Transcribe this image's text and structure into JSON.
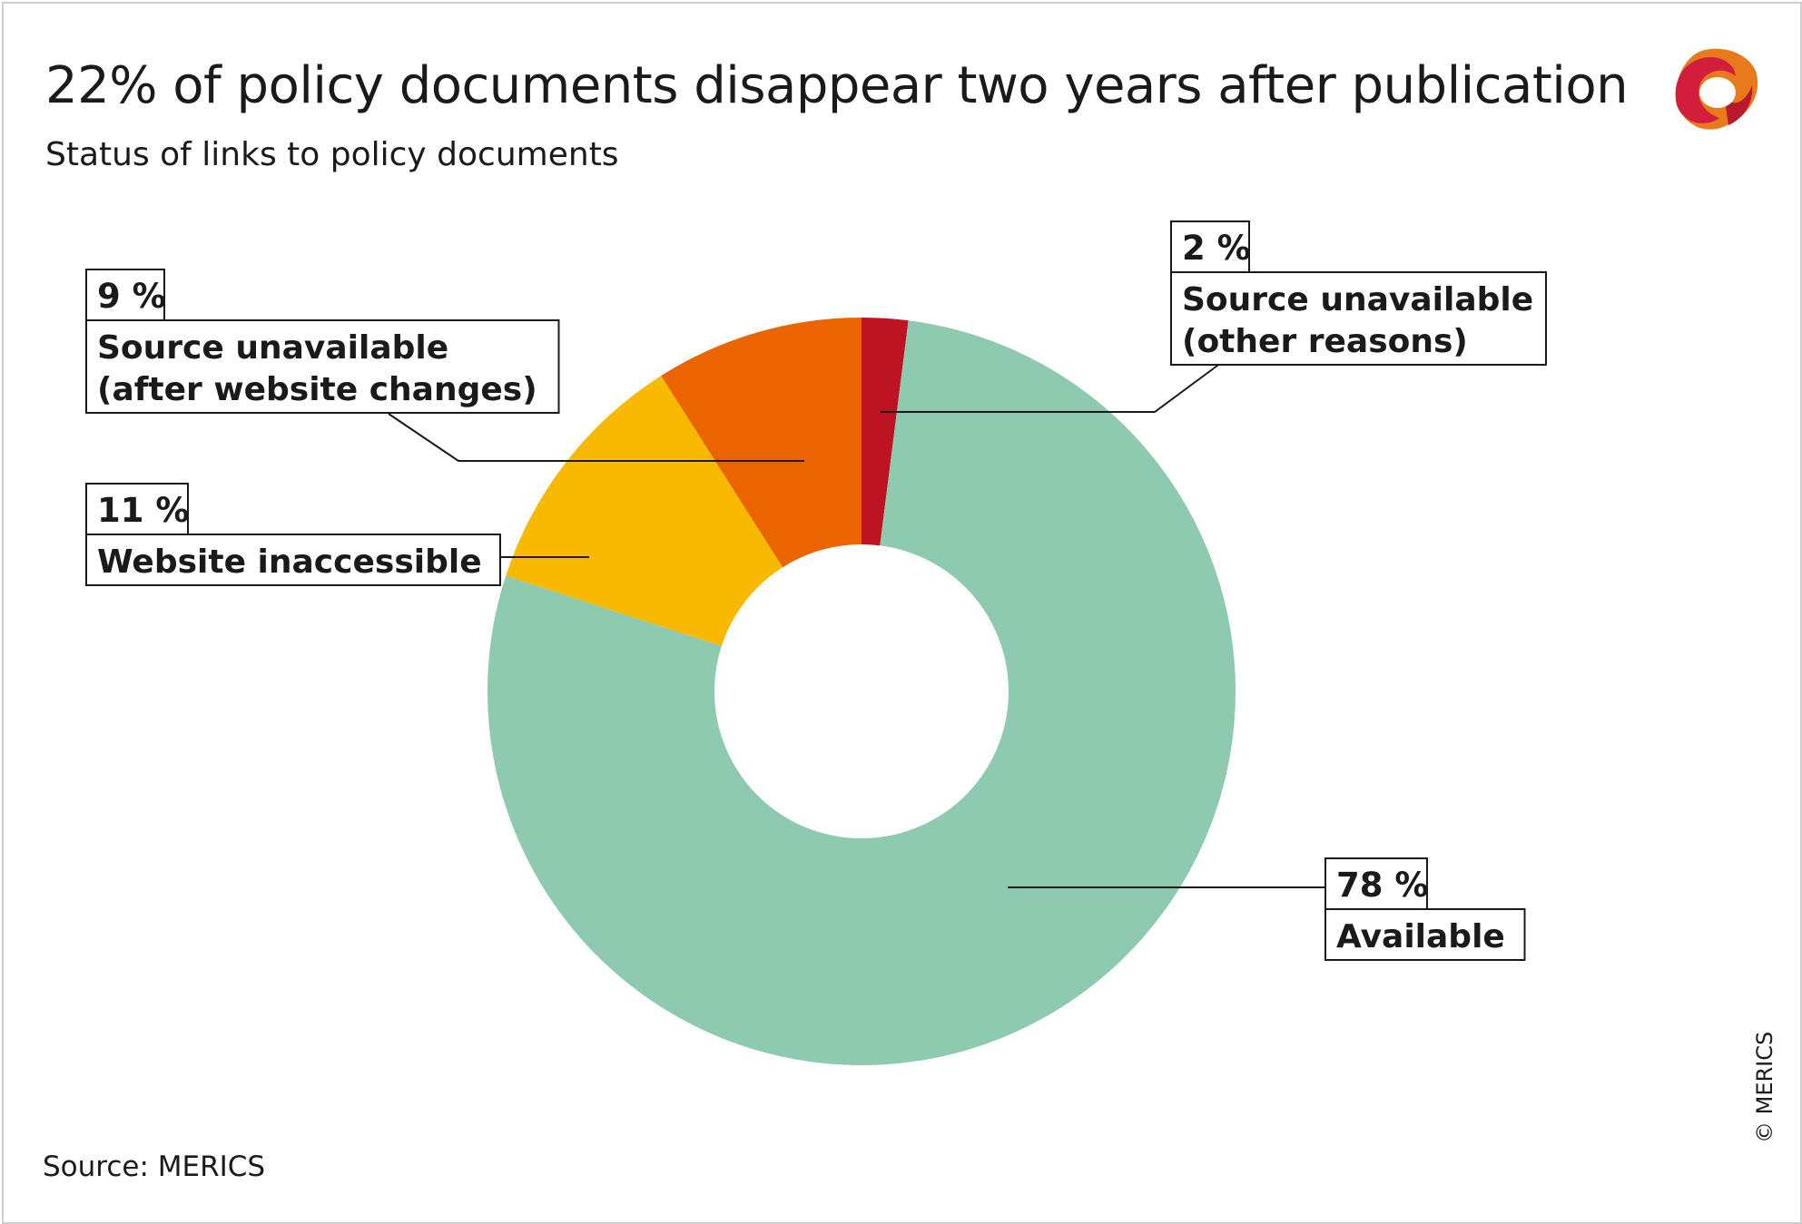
{
  "title": "22% of policy documents disappear two years after publication",
  "subtitle": "Status of links to policy documents",
  "source": "Source: MERICS",
  "copyright": "© MERICS",
  "chart_data": {
    "type": "pie",
    "donut": true,
    "slices": [
      {
        "label_lines": [
          "Source unavailable",
          "(other reasons)"
        ],
        "value": 2,
        "display": "2 %",
        "color": "#be1322"
      },
      {
        "label_lines": [
          "Available"
        ],
        "value": 78,
        "display": "78 %",
        "color": "#8dcaaf"
      },
      {
        "label_lines": [
          "Website inaccessible"
        ],
        "value": 11,
        "display": "11 %",
        "color": "#f9b900"
      },
      {
        "label_lines": [
          "Source unavailable",
          "(after website changes)"
        ],
        "value": 9,
        "display": "9 %",
        "color": "#ec6400"
      }
    ]
  }
}
